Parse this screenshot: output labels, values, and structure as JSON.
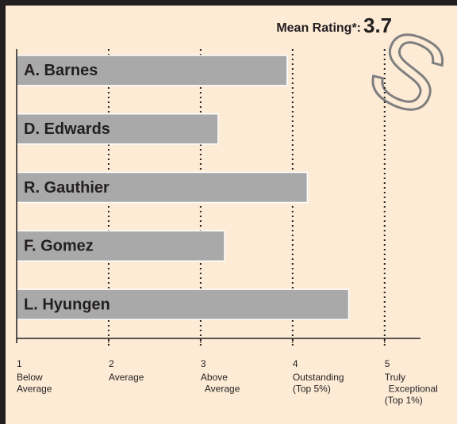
{
  "chart_data": {
    "type": "bar",
    "orientation": "horizontal",
    "mean_label": "Mean Rating*:",
    "mean_value": "3.7",
    "watermark": "S",
    "categories": [
      "A. Barnes",
      "D. Edwards",
      "R. Gauthier",
      "F. Gomez",
      "L. Hyungen"
    ],
    "values": [
      3.94,
      3.19,
      4.16,
      3.26,
      4.61
    ],
    "color": "#a9a9a9",
    "xlim": [
      1,
      5.39
    ],
    "xticks": [
      1,
      2,
      3,
      4,
      5
    ],
    "tick_descriptions": [
      [
        "Below",
        "Average"
      ],
      [
        "Average"
      ],
      [
        "Above",
        "Average"
      ],
      [
        "Outstanding",
        "(Top 5%)"
      ],
      [
        "Truly",
        "Exceptional",
        "(Top 1%)"
      ]
    ],
    "grid": true
  }
}
